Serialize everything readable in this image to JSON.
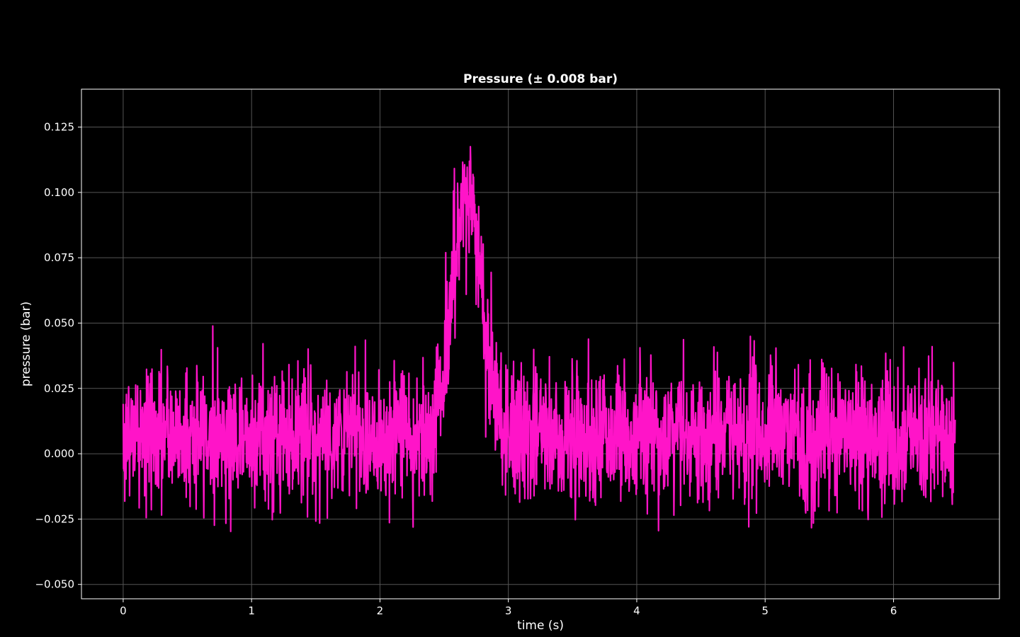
{
  "chart_data": {
    "type": "line",
    "title": "Pressure (± 0.008 bar)",
    "xlabel": "time (s)",
    "ylabel": "pressure (bar)",
    "xlim": [
      -0.325,
      6.825
    ],
    "ylim": [
      -0.0555,
      0.1395
    ],
    "grid": true,
    "xticks": [
      0,
      1,
      2,
      3,
      4,
      5,
      6
    ],
    "xtick_labels": [
      "0",
      "1",
      "2",
      "3",
      "4",
      "5",
      "6"
    ],
    "yticks": [
      -0.05,
      -0.025,
      0.0,
      0.025,
      0.05,
      0.075,
      0.1,
      0.125
    ],
    "ytick_labels": [
      "−0.050",
      "−0.025",
      "0.000",
      "0.025",
      "0.050",
      "0.075",
      "0.100",
      "0.125"
    ],
    "series": [
      {
        "color": "#ff14c8",
        "signal": {
          "t_start": 0.0,
          "t_end": 6.48,
          "baseline": 0.007,
          "noise_std": 0.013,
          "peak_amplitude": 0.092,
          "peak_time": 2.68,
          "peak_width": 0.115
        }
      }
    ]
  },
  "colors": {
    "background": "#000000",
    "frame": "#ffffff",
    "grid": "#555555",
    "text": "#ffffff",
    "line": "#ff14c8"
  }
}
